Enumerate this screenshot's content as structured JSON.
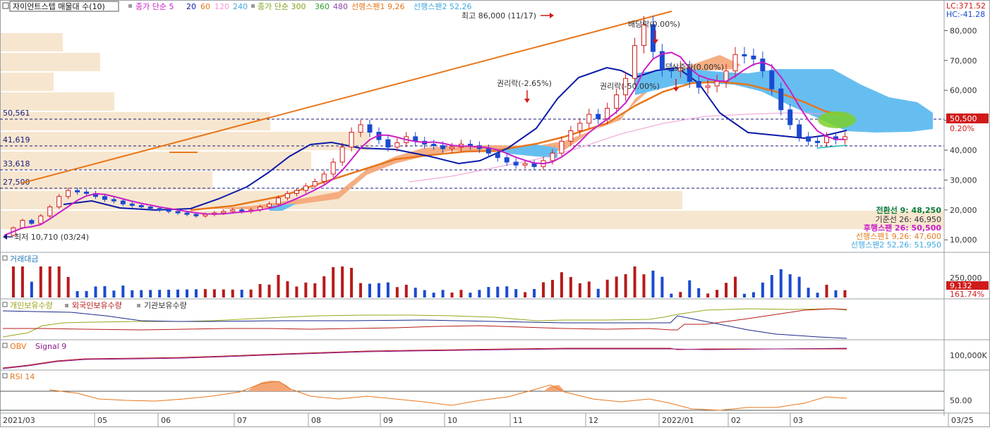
{
  "header": {
    "checkbox_icon": "square-checkbox-icon",
    "title": "자이언트스텝 매물대 수(10)",
    "ma_group1_label": "종가 단순 5",
    "ma_group1_rest": [
      "20",
      "60",
      "120",
      "240"
    ],
    "ma_group2_label": "종가 단순 300",
    "ma_group2_rest": [
      "360",
      "480"
    ],
    "span1_label": "선행스팬1 9,26",
    "span2_label": "선행스팬2 52,26",
    "top_right_lc": "LC:371.52",
    "top_right_hc": "HC:-41.28"
  },
  "price_pane": {
    "annotations": {
      "high": "최고 86,000 (11/17)",
      "low": "최저 10,710 (03/24)",
      "dividend": "배당락(0.00%)",
      "rights1": "권리락(-2.65%)",
      "rights2": "권리락(-50.00%)",
      "bonus": "무상증자(0.00%)"
    },
    "hline_labels": [
      "50,561",
      "41,619",
      "33,618",
      "27,500"
    ],
    "current_price": "50,500",
    "current_change": "0.20%",
    "ichimoku_values": [
      {
        "label": "전환선 9: 48,250",
        "color": "#0a7a3a"
      },
      {
        "label": "기준선 26: 46,950",
        "color": "#333333"
      },
      {
        "label": "후행스팬 26: 50,500",
        "color": "#c81ec8"
      },
      {
        "label": "선행스팬1 9,26: 47,600",
        "color": "#e67e22"
      },
      {
        "label": "선행스팬2 52,26: 51,950",
        "color": "#3fa8e0"
      }
    ]
  },
  "volume_pane": {
    "title": "거래대금",
    "axis_label": "250,000",
    "current_value": "9,132",
    "current_change": "161.74%"
  },
  "holdings_pane": {
    "labels": [
      "개인보유수량",
      "외국인보유수량",
      "기관보유수량"
    ]
  },
  "obv_pane": {
    "labels": [
      "OBV",
      "Signal 9"
    ],
    "axis_label": "100,000K"
  },
  "rsi_pane": {
    "title": "RSI 14",
    "axis_label": "50.00"
  },
  "x_axis": {
    "labels": [
      "2021/03",
      "05",
      "06",
      "07",
      "08",
      "09",
      "10",
      "11",
      "12",
      "2022/01",
      "02",
      "03",
      "03/25"
    ]
  },
  "chart_data": {
    "type": "candlestick",
    "title": "자이언트스텝 매물대 수(10)",
    "x": [
      "2021/03",
      "05",
      "06",
      "07",
      "08",
      "09",
      "10",
      "11",
      "12",
      "2022/01",
      "02",
      "03"
    ],
    "y_axis_ticks": [
      10000,
      20000,
      30000,
      40000,
      50000,
      60000,
      70000,
      80000
    ],
    "ylim": [
      5000,
      86000
    ],
    "price_path": [
      [
        0,
        11500
      ],
      [
        1,
        14000
      ],
      [
        2,
        16500
      ],
      [
        3,
        15500
      ],
      [
        4,
        18000
      ],
      [
        5,
        21000
      ],
      [
        6,
        24500
      ],
      [
        7,
        26500
      ],
      [
        8,
        26000
      ],
      [
        9,
        25500
      ],
      [
        10,
        24500
      ],
      [
        11,
        23500
      ],
      [
        12,
        23000
      ],
      [
        13,
        22000
      ],
      [
        14,
        21500
      ],
      [
        15,
        21000
      ],
      [
        16,
        20500
      ],
      [
        17,
        20000
      ],
      [
        18,
        19500
      ],
      [
        19,
        19000
      ],
      [
        20,
        18500
      ],
      [
        21,
        18000
      ],
      [
        22,
        18500
      ],
      [
        23,
        19000
      ],
      [
        24,
        19500
      ],
      [
        25,
        20000
      ],
      [
        26,
        19500
      ],
      [
        27,
        20000
      ],
      [
        28,
        21000
      ],
      [
        29,
        22000
      ],
      [
        30,
        24000
      ],
      [
        31,
        25500
      ],
      [
        32,
        26500
      ],
      [
        33,
        28000
      ],
      [
        34,
        29500
      ],
      [
        35,
        32000
      ],
      [
        36,
        36000
      ],
      [
        37,
        41000
      ],
      [
        38,
        46000
      ],
      [
        39,
        48500
      ],
      [
        40,
        46000
      ],
      [
        41,
        43500
      ],
      [
        42,
        41000
      ],
      [
        43,
        42500
      ],
      [
        44,
        44500
      ],
      [
        45,
        43000
      ],
      [
        46,
        42000
      ],
      [
        47,
        41500
      ],
      [
        48,
        40500
      ],
      [
        49,
        41000
      ],
      [
        50,
        42000
      ],
      [
        51,
        41500
      ],
      [
        52,
        40500
      ],
      [
        53,
        39000
      ],
      [
        54,
        37500
      ],
      [
        55,
        36000
      ],
      [
        56,
        35000
      ],
      [
        57,
        35500
      ],
      [
        58,
        34500
      ],
      [
        59,
        36500
      ],
      [
        60,
        39000
      ],
      [
        61,
        43000
      ],
      [
        62,
        46500
      ],
      [
        63,
        49000
      ],
      [
        64,
        52000
      ],
      [
        65,
        50500
      ],
      [
        66,
        54000
      ],
      [
        67,
        58500
      ],
      [
        68,
        64000
      ],
      [
        69,
        75000
      ],
      [
        70,
        82000
      ],
      [
        71,
        73000
      ],
      [
        72,
        67000
      ],
      [
        73,
        66500
      ],
      [
        74,
        67500
      ],
      [
        75,
        63000
      ],
      [
        76,
        61000
      ],
      [
        77,
        61500
      ],
      [
        78,
        63000
      ],
      [
        79,
        66500
      ],
      [
        80,
        72000
      ],
      [
        81,
        71500
      ],
      [
        82,
        70500
      ],
      [
        83,
        66500
      ],
      [
        84,
        60500
      ],
      [
        85,
        53500
      ],
      [
        86,
        48500
      ],
      [
        87,
        44500
      ],
      [
        88,
        43000
      ],
      [
        89,
        42500
      ],
      [
        90,
        44500
      ],
      [
        91,
        43500
      ],
      [
        92,
        44500
      ]
    ],
    "candles_count": 93,
    "x_label_index": [
      0,
      12,
      20,
      30,
      40,
      48,
      57,
      66,
      75,
      84,
      93,
      100
    ],
    "horizontal_levels": [
      50561,
      41619,
      33618,
      27500
    ],
    "last_price": 50500,
    "last_change_pct": 0.2,
    "period_high": {
      "value": 86000,
      "date": "11/17"
    },
    "period_low": {
      "value": 10710,
      "date": "03/24"
    },
    "ichimoku": {
      "conversion_9": 48250,
      "base_26": 46950,
      "lagging_26": 50500,
      "leading_span1_9_26": 47600,
      "leading_span2_52_26": 51950
    },
    "volume_axis_tick": 250000,
    "volume_last": 9132,
    "volume_change_pct": 161.74,
    "obv_axis_tick": "100,000K",
    "rsi_axis_tick": 50.0,
    "series": [
      {
        "name": "종가 단순 5",
        "color": "#c81ec8"
      },
      {
        "name": "20",
        "color": "#0a1aa8"
      },
      {
        "name": "60",
        "color": "#e67e22"
      },
      {
        "name": "120",
        "color": "#f19ad2"
      },
      {
        "name": "240",
        "color": "#3fa8e0"
      }
    ]
  }
}
